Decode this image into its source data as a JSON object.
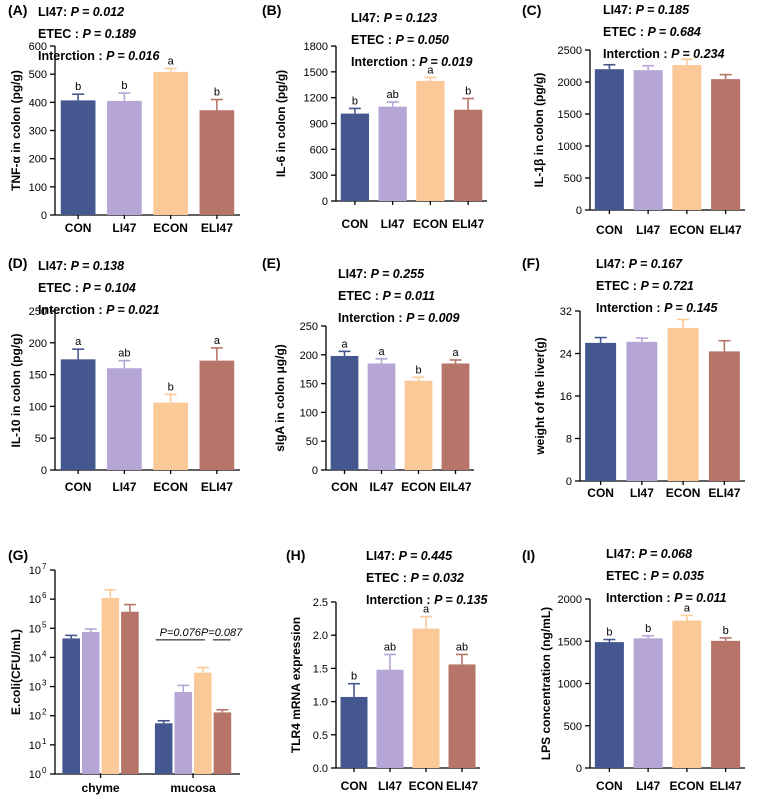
{
  "colors": [
    "#44588f",
    "#b5a6d5",
    "#fbc998",
    "#b7756a"
  ],
  "chart_data": [
    {
      "id": "A",
      "label": "(A)",
      "type": "bar",
      "categories": [
        "CON",
        "LI47",
        "ECON",
        "ELI47"
      ],
      "values": [
        407,
        405,
        508,
        372
      ],
      "errors": [
        22,
        28,
        12,
        38
      ],
      "letters": [
        "b",
        "b",
        "a",
        "b"
      ],
      "ylabel": "TNF-α in colon (pg/g)",
      "ylim": [
        0,
        600
      ],
      "yticks": [
        "0",
        "100",
        "200",
        "300",
        "400",
        "500",
        "600"
      ],
      "stats": [
        {
          "name": "LI47:",
          "p": "P = 0.012"
        },
        {
          "name": "ETEC :",
          "p": "P = 0.189"
        },
        {
          "name": "Interction :",
          "p": "P = 0.016"
        }
      ]
    },
    {
      "id": "B",
      "label": "(B)",
      "type": "bar",
      "categories": [
        "CON",
        "LI47",
        "ECON",
        "ELI47"
      ],
      "values": [
        1015,
        1095,
        1395,
        1060
      ],
      "errors": [
        60,
        55,
        40,
        130
      ],
      "letters": [
        "b",
        "ab",
        "a",
        "b"
      ],
      "ylabel": "IL-6 in colon (pg/g)",
      "ylim": [
        0,
        1800
      ],
      "yticks": [
        "0",
        "300",
        "600",
        "900",
        "1200",
        "1500",
        "1800"
      ],
      "stats": [
        {
          "name": "LI47:",
          "p": "P = 0.123"
        },
        {
          "name": "ETEC :",
          "p": "P = 0.050"
        },
        {
          "name": "Interction :",
          "p": "P = 0.019"
        }
      ]
    },
    {
      "id": "C",
      "label": "(C)",
      "type": "bar",
      "categories": [
        "CON",
        "LI47",
        "ECON",
        "ELI47"
      ],
      "values": [
        2200,
        2185,
        2265,
        2045
      ],
      "errors": [
        70,
        70,
        90,
        70
      ],
      "letters": [
        "",
        "",
        "",
        ""
      ],
      "ylabel": "IL-1β in colon (pg/g)",
      "ylim": [
        0,
        2500
      ],
      "yticks": [
        "0",
        "500",
        "1000",
        "1500",
        "2000",
        "2500"
      ],
      "stats": [
        {
          "name": "LI47:",
          "p": "P = 0.185"
        },
        {
          "name": "ETEC :",
          "p": "P = 0.684"
        },
        {
          "name": "Interction :",
          "p": "P = 0.234"
        }
      ]
    },
    {
      "id": "D",
      "label": "(D)",
      "type": "bar",
      "categories": [
        "CON",
        "LI47",
        "ECON",
        "ELI47"
      ],
      "values": [
        174,
        160,
        106,
        172
      ],
      "errors": [
        16,
        12,
        13,
        20
      ],
      "letters": [
        "a",
        "ab",
        "b",
        "a"
      ],
      "ylabel": "IL-10 in colon (pg/g)",
      "ylim": [
        0,
        250
      ],
      "yticks": [
        "0",
        "50",
        "100",
        "150",
        "200",
        "250"
      ],
      "stats": [
        {
          "name": "LI47:",
          "p": "P = 0.138"
        },
        {
          "name": "ETEC :",
          "p": "P = 0.104"
        },
        {
          "name": "Interction :",
          "p": "P = 0.021"
        }
      ]
    },
    {
      "id": "E",
      "label": "(E)",
      "type": "bar",
      "categories": [
        "CON",
        "IL47",
        "ECON",
        "EIL47"
      ],
      "values": [
        198,
        185,
        155,
        185
      ],
      "errors": [
        8,
        8,
        6,
        6
      ],
      "letters": [
        "a",
        "a",
        "b",
        "a"
      ],
      "ylabel": "sIgA in colon μg/g)",
      "ylim": [
        0,
        250
      ],
      "yticks": [
        "0",
        "50",
        "100",
        "150",
        "200",
        "250"
      ],
      "stats": [
        {
          "name": "LI47:",
          "p": "P = 0.255"
        },
        {
          "name": "ETEC :",
          "p": "P = 0.011"
        },
        {
          "name": "Interction :",
          "p": "P = 0.009"
        }
      ]
    },
    {
      "id": "F",
      "label": "(F)",
      "type": "bar",
      "categories": [
        "CON",
        "LI47",
        "ECON",
        "ELI47"
      ],
      "values": [
        26,
        26.2,
        28.8,
        24.4
      ],
      "errors": [
        1,
        0.7,
        1.6,
        2
      ],
      "letters": [
        "",
        "",
        "",
        ""
      ],
      "ylabel": "weight of the liver(g)",
      "ylim": [
        0,
        32
      ],
      "yticks": [
        "0",
        "8",
        "16",
        "24",
        "32"
      ],
      "stats": [
        {
          "name": "LI47:",
          "p": "P = 0.167"
        },
        {
          "name": "ETEC :",
          "p": "P = 0.721"
        },
        {
          "name": "Interction :",
          "p": "P = 0.145"
        }
      ]
    },
    {
      "id": "G",
      "label": "(G)",
      "type": "bar",
      "log": true,
      "groups": [
        "chyme",
        "mucosa"
      ],
      "series_values": [
        [
          45000,
          75000,
          1100000,
          370000
        ],
        [
          55,
          650,
          3000,
          130
        ]
      ],
      "series_errors": [
        [
          12000,
          20000,
          1000000,
          280000
        ],
        [
          12,
          450,
          1500,
          30
        ]
      ],
      "ylabel": "E.coli(CFU/mL)",
      "ylim": [
        1,
        10000000
      ],
      "yticks": [
        "10",
        "10",
        "10",
        "10",
        "10",
        "10",
        "10",
        "10"
      ],
      "ytick_exps": [
        "0",
        "1",
        "2",
        "3",
        "4",
        "5",
        "6",
        "7"
      ],
      "brackets": [
        {
          "p": "P=0.076"
        },
        {
          "p": "P=0.087"
        }
      ]
    },
    {
      "id": "H",
      "label": "(H)",
      "type": "bar",
      "categories": [
        "CON",
        "LI47",
        "ECON",
        "ELI47"
      ],
      "values": [
        1.07,
        1.48,
        2.1,
        1.56
      ],
      "errors": [
        0.2,
        0.23,
        0.18,
        0.15
      ],
      "letters": [
        "b",
        "ab",
        "a",
        "ab"
      ],
      "ylabel": "TLR4 mRNA expression",
      "ylim": [
        0,
        2.5
      ],
      "yticks": [
        "0.0",
        "0.5",
        "1.0",
        "1.5",
        "2.0",
        "2.5"
      ],
      "stats": [
        {
          "name": "LI47:",
          "p": "P = 0.445"
        },
        {
          "name": "ETEC :",
          "p": "P = 0.032"
        },
        {
          "name": "Interction :",
          "p": "P = 0.135"
        }
      ]
    },
    {
      "id": "I",
      "label": "(I)",
      "type": "bar",
      "categories": [
        "CON",
        "LI47",
        "ECON",
        "ELI47"
      ],
      "values": [
        1490,
        1535,
        1745,
        1505
      ],
      "errors": [
        30,
        30,
        60,
        35
      ],
      "letters": [
        "b",
        "b",
        "a",
        "b"
      ],
      "ylabel": "LPS concentration (ng/mL)",
      "ylim": [
        0,
        2000
      ],
      "yticks": [
        "0",
        "500",
        "1000",
        "1500",
        "2000"
      ],
      "stats": [
        {
          "name": "LI47:",
          "p": "P = 0.068"
        },
        {
          "name": "ETEC :",
          "p": "P = 0.035"
        },
        {
          "name": "Interction :",
          "p": "P = 0.011"
        }
      ]
    }
  ]
}
